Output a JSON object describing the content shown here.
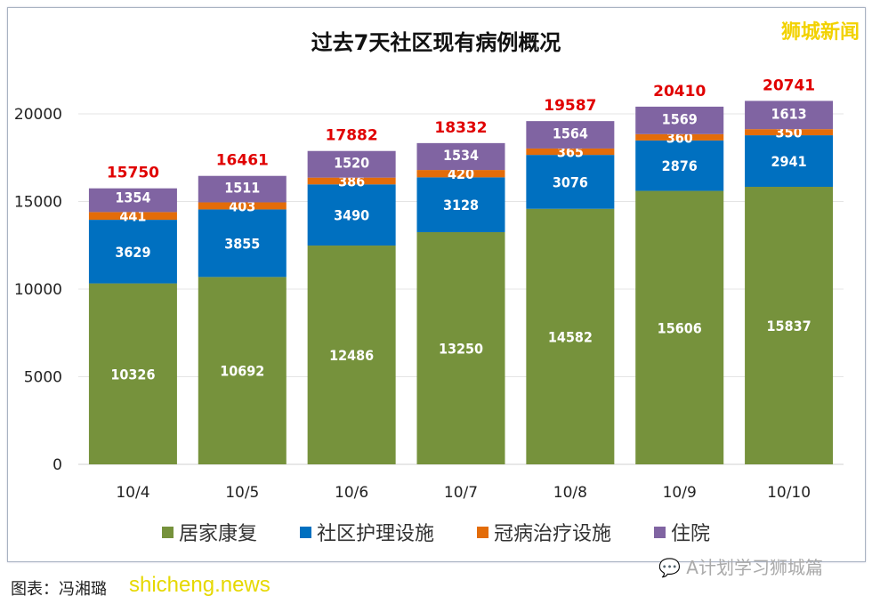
{
  "chart_data": {
    "type": "bar",
    "stacked": true,
    "title": "过去7天社区现有病例概况",
    "categories": [
      "10/4",
      "10/5",
      "10/6",
      "10/7",
      "10/8",
      "10/9",
      "10/10"
    ],
    "series": [
      {
        "name": "居家康复",
        "color": "#76923c",
        "values": [
          10326,
          10692,
          12486,
          13250,
          14582,
          15606,
          15837
        ]
      },
      {
        "name": "社区护理设施",
        "color": "#0070c0",
        "values": [
          3629,
          3855,
          3490,
          3128,
          3076,
          2876,
          2941
        ]
      },
      {
        "name": "冠病治疗设施",
        "color": "#e36c09",
        "values": [
          441,
          403,
          386,
          420,
          365,
          360,
          350
        ]
      },
      {
        "name": "住院",
        "color": "#8064a2",
        "values": [
          1354,
          1511,
          1520,
          1534,
          1564,
          1569,
          1613
        ]
      }
    ],
    "totals": [
      15750,
      16461,
      17882,
      18332,
      19587,
      20410,
      20741
    ],
    "total_color": "#e00000",
    "ylim": [
      0,
      20000
    ],
    "yticks": [
      0,
      5000,
      10000,
      15000,
      20000
    ],
    "grid": true,
    "legend": "bottom"
  },
  "watermark_top": "狮城新闻",
  "watermark_bottom": "A计划学习狮城篇",
  "caption": "图表：冯湘璐",
  "caption_overlay": "shicheng.news"
}
